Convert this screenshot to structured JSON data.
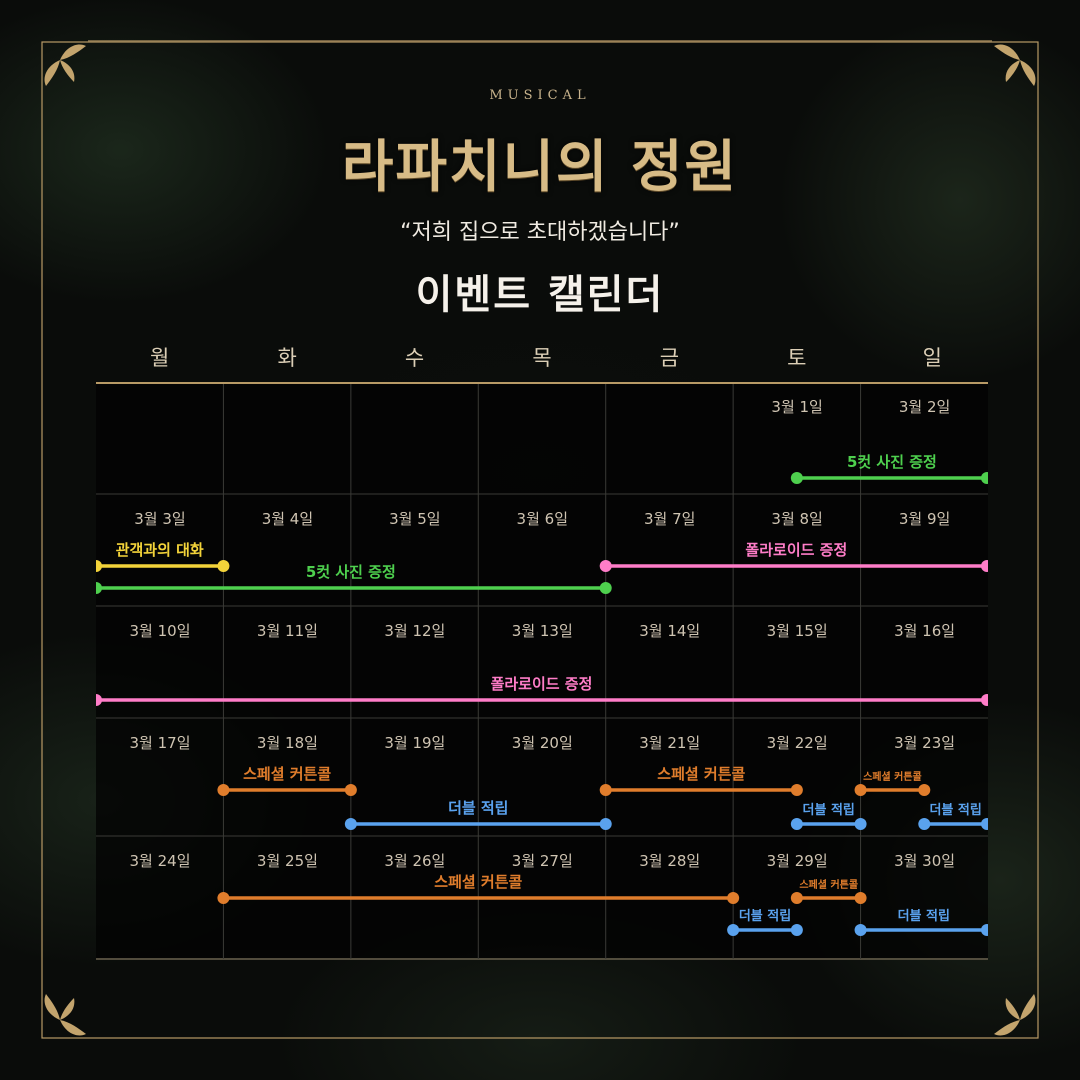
{
  "header": {
    "musical": "MUSICAL",
    "title": "라파치니의 정원",
    "subtitle": "“저희 집으로 초대하겠습니다”",
    "heading": "이벤트 캘린더"
  },
  "weekdays": [
    "월",
    "화",
    "수",
    "목",
    "금",
    "토",
    "일"
  ],
  "weeks": [
    [
      "",
      "",
      "",
      "",
      "",
      "3월 1일",
      "3월 2일"
    ],
    [
      "3월 3일",
      "3월 4일",
      "3월 5일",
      "3월 6일",
      "3월 7일",
      "3월 8일",
      "3월 9일"
    ],
    [
      "3월 10일",
      "3월 11일",
      "3월 12일",
      "3월 13일",
      "3월 14일",
      "3월 15일",
      "3월 16일"
    ],
    [
      "3월 17일",
      "3월 18일",
      "3월 19일",
      "3월 20일",
      "3월 21일",
      "3월 22일",
      "3월 23일"
    ],
    [
      "3월 24일",
      "3월 25일",
      "3월 26일",
      "3월 27일",
      "3월 28일",
      "3월 29일",
      "3월 30일"
    ]
  ],
  "colors": {
    "gold": "#b89a66",
    "yellow": "#f3d33a",
    "green": "#4ed04e",
    "pink": "#ff7dc8",
    "orange": "#e07d2c",
    "blue": "#5aa2ee"
  },
  "events": [
    {
      "label": "5컷 사진 증정",
      "color": "green",
      "week": 0,
      "start": 5.5,
      "end": 7,
      "lane": 0,
      "size": "normal"
    },
    {
      "label": "관객과의 대화",
      "color": "yellow",
      "week": 1,
      "start": 0,
      "end": 1,
      "lane": 0,
      "size": "normal"
    },
    {
      "label": "5컷 사진 증정",
      "color": "green",
      "week": 1,
      "start": 0,
      "end": 4,
      "lane": 1,
      "size": "normal"
    },
    {
      "label": "폴라로이드 증정",
      "color": "pink",
      "week": 1,
      "start": 4,
      "end": 7,
      "lane": 0,
      "size": "normal"
    },
    {
      "label": "폴라로이드 증정",
      "color": "pink",
      "week": 2,
      "start": 0,
      "end": 7,
      "lane": 1,
      "size": "normal"
    },
    {
      "label": "스페셜 커튼콜",
      "color": "orange",
      "week": 3,
      "start": 1,
      "end": 2,
      "lane": 0,
      "size": "normal"
    },
    {
      "label": "더블 적립",
      "color": "blue",
      "week": 3,
      "start": 2,
      "end": 4,
      "lane": 1,
      "size": "normal"
    },
    {
      "label": "스페셜 커튼콜",
      "color": "orange",
      "week": 3,
      "start": 4,
      "end": 5.5,
      "lane": 0,
      "size": "normal"
    },
    {
      "label": "더블 적립",
      "color": "blue",
      "week": 3,
      "start": 5.5,
      "end": 6,
      "lane": 1,
      "size": "small"
    },
    {
      "label": "스페셜 커튼콜",
      "color": "orange",
      "week": 3,
      "start": 6,
      "end": 6.5,
      "lane": 0,
      "size": "tiny"
    },
    {
      "label": "더블 적립",
      "color": "blue",
      "week": 3,
      "start": 6.5,
      "end": 7,
      "lane": 1,
      "size": "small"
    },
    {
      "label": "스페셜 커튼콜",
      "color": "orange",
      "week": 4,
      "start": 1,
      "end": 5,
      "lane": 0,
      "size": "normal"
    },
    {
      "label": "더블 적립",
      "color": "blue",
      "week": 4,
      "start": 5,
      "end": 5.5,
      "lane": 1,
      "size": "small"
    },
    {
      "label": "스페셜 커튼콜",
      "color": "orange",
      "week": 4,
      "start": 5.5,
      "end": 6,
      "lane": 0,
      "size": "tiny"
    },
    {
      "label": "더블 적립",
      "color": "blue",
      "week": 4,
      "start": 6,
      "end": 7,
      "lane": 1,
      "size": "small"
    }
  ]
}
